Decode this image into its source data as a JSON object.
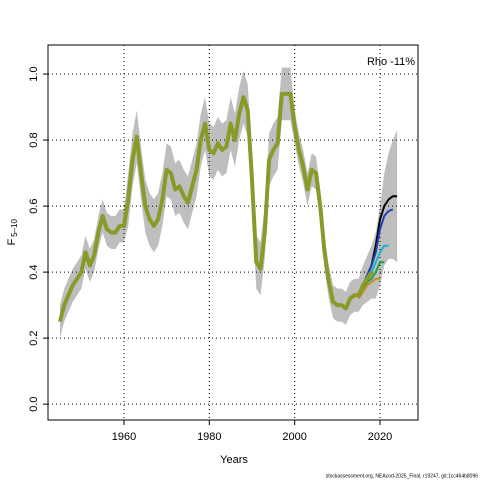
{
  "chart_data": {
    "type": "line",
    "annotation": "Rho -11%",
    "xlabel": "Years",
    "ylabel": "F",
    "ylabel_sub": "5–10",
    "footer": "stockassessment.org, NEAcod-2025_Final, r19247, git:1cc464b8096",
    "xlim": [
      1942.2,
      2028.9
    ],
    "ylim": [
      -0.048,
      1.088
    ],
    "xticks": [
      1960,
      1980,
      2000,
      2020
    ],
    "yticks": [
      {
        "value": 0,
        "label": "0.0"
      },
      0.2,
      0.4,
      0.6,
      0.8,
      {
        "value": 1,
        "label": "1.0"
      }
    ],
    "grid": true,
    "band_color": "#bebebe",
    "x": [
      1945,
      1946,
      1947,
      1948,
      1949,
      1950,
      1951,
      1952,
      1953,
      1954,
      1955,
      1956,
      1957,
      1958,
      1959,
      1960,
      1961,
      1962,
      1963,
      1964,
      1965,
      1966,
      1967,
      1968,
      1969,
      1970,
      1971,
      1972,
      1973,
      1974,
      1975,
      1976,
      1977,
      1978,
      1979,
      1980,
      1981,
      1982,
      1983,
      1984,
      1985,
      1986,
      1987,
      1988,
      1989,
      1990,
      1991,
      1992,
      1993,
      1994,
      1995,
      1996,
      1997,
      1998,
      1999,
      2000,
      2001,
      2002,
      2003,
      2004,
      2005,
      2006,
      2007,
      2008,
      2009,
      2010,
      2011,
      2012,
      2013,
      2014,
      2015,
      2016,
      2017,
      2018,
      2019,
      2020,
      2021,
      2022,
      2023,
      2024
    ],
    "band_upper": [
      0.3,
      0.35,
      0.38,
      0.41,
      0.43,
      0.45,
      0.51,
      0.47,
      0.5,
      0.57,
      0.62,
      0.58,
      0.57,
      0.57,
      0.59,
      0.59,
      0.7,
      0.82,
      0.89,
      0.78,
      0.68,
      0.64,
      0.62,
      0.64,
      0.7,
      0.79,
      0.78,
      0.73,
      0.74,
      0.71,
      0.69,
      0.74,
      0.79,
      0.88,
      0.93,
      0.85,
      0.84,
      0.87,
      0.85,
      0.86,
      0.93,
      0.88,
      0.96,
      1.01,
      0.97,
      0.76,
      0.51,
      0.49,
      0.6,
      0.82,
      0.85,
      0.87,
      1.02,
      1.02,
      1.02,
      0.89,
      0.82,
      0.77,
      0.7,
      0.76,
      0.75,
      0.65,
      0.51,
      0.42,
      0.36,
      0.35,
      0.35,
      0.34,
      0.37,
      0.38,
      0.38,
      0.42,
      0.45,
      0.48,
      0.52,
      0.6,
      0.7,
      0.76,
      0.8,
      0.83
    ],
    "band_lower": [
      0.2,
      0.25,
      0.28,
      0.31,
      0.33,
      0.35,
      0.41,
      0.37,
      0.4,
      0.47,
      0.52,
      0.48,
      0.47,
      0.47,
      0.49,
      0.49,
      0.54,
      0.66,
      0.73,
      0.62,
      0.52,
      0.48,
      0.46,
      0.48,
      0.54,
      0.63,
      0.62,
      0.57,
      0.58,
      0.55,
      0.53,
      0.58,
      0.63,
      0.72,
      0.77,
      0.69,
      0.68,
      0.71,
      0.69,
      0.7,
      0.77,
      0.72,
      0.8,
      0.85,
      0.81,
      0.6,
      0.35,
      0.33,
      0.44,
      0.66,
      0.69,
      0.71,
      0.86,
      0.86,
      0.86,
      0.79,
      0.72,
      0.67,
      0.6,
      0.66,
      0.65,
      0.55,
      0.41,
      0.32,
      0.26,
      0.25,
      0.25,
      0.24,
      0.27,
      0.28,
      0.28,
      0.3,
      0.31,
      0.32,
      0.32,
      0.36,
      0.42,
      0.44,
      0.44,
      0.43
    ],
    "series": [
      {
        "color": "#000000",
        "width": 2,
        "x": [
          2015,
          2016,
          2017,
          2018,
          2019,
          2020,
          2021,
          2022,
          2023,
          2024
        ],
        "values": [
          0.33,
          0.36,
          0.39,
          0.42,
          0.48,
          0.56,
          0.6,
          0.62,
          0.63,
          0.63
        ]
      },
      {
        "color": "#2040b0",
        "width": 2,
        "x": [
          2015,
          2016,
          2017,
          2018,
          2019,
          2020,
          2021,
          2022,
          2023
        ],
        "values": [
          0.33,
          0.36,
          0.39,
          0.42,
          0.46,
          0.53,
          0.57,
          0.585,
          0.59
        ]
      },
      {
        "color": "#20b0d0",
        "width": 2,
        "x": [
          2015,
          2016,
          2017,
          2018,
          2019,
          2020,
          2021,
          2022
        ],
        "values": [
          0.33,
          0.35,
          0.38,
          0.4,
          0.43,
          0.46,
          0.48,
          0.48
        ]
      },
      {
        "color": "#20a040",
        "width": 2,
        "x": [
          2015,
          2016,
          2017,
          2018,
          2019,
          2020,
          2021
        ],
        "values": [
          0.32,
          0.35,
          0.37,
          0.38,
          0.4,
          0.43,
          0.43
        ]
      },
      {
        "color": "#c09020",
        "width": 2,
        "x": [
          2015,
          2016,
          2017,
          2018,
          2019,
          2020
        ],
        "values": [
          0.32,
          0.34,
          0.36,
          0.37,
          0.38,
          0.38
        ]
      },
      {
        "color": "#8a9a28",
        "width": 4,
        "values": [
          0.25,
          0.3,
          0.33,
          0.36,
          0.38,
          0.4,
          0.46,
          0.42,
          0.45,
          0.52,
          0.57,
          0.53,
          0.52,
          0.52,
          0.54,
          0.54,
          0.62,
          0.74,
          0.81,
          0.7,
          0.6,
          0.56,
          0.54,
          0.56,
          0.62,
          0.71,
          0.7,
          0.65,
          0.66,
          0.63,
          0.61,
          0.66,
          0.71,
          0.8,
          0.85,
          0.77,
          0.76,
          0.79,
          0.77,
          0.78,
          0.85,
          0.8,
          0.88,
          0.93,
          0.89,
          0.68,
          0.43,
          0.41,
          0.52,
          0.74,
          0.77,
          0.79,
          0.94,
          0.94,
          0.94,
          0.84,
          0.77,
          0.72,
          0.65,
          0.71,
          0.7,
          0.6,
          0.46,
          0.37,
          0.31,
          0.3,
          0.3,
          0.29,
          0.32,
          0.33,
          0.33,
          0.36,
          0.38,
          0.4,
          null,
          null,
          null,
          null,
          null,
          null
        ]
      }
    ]
  }
}
